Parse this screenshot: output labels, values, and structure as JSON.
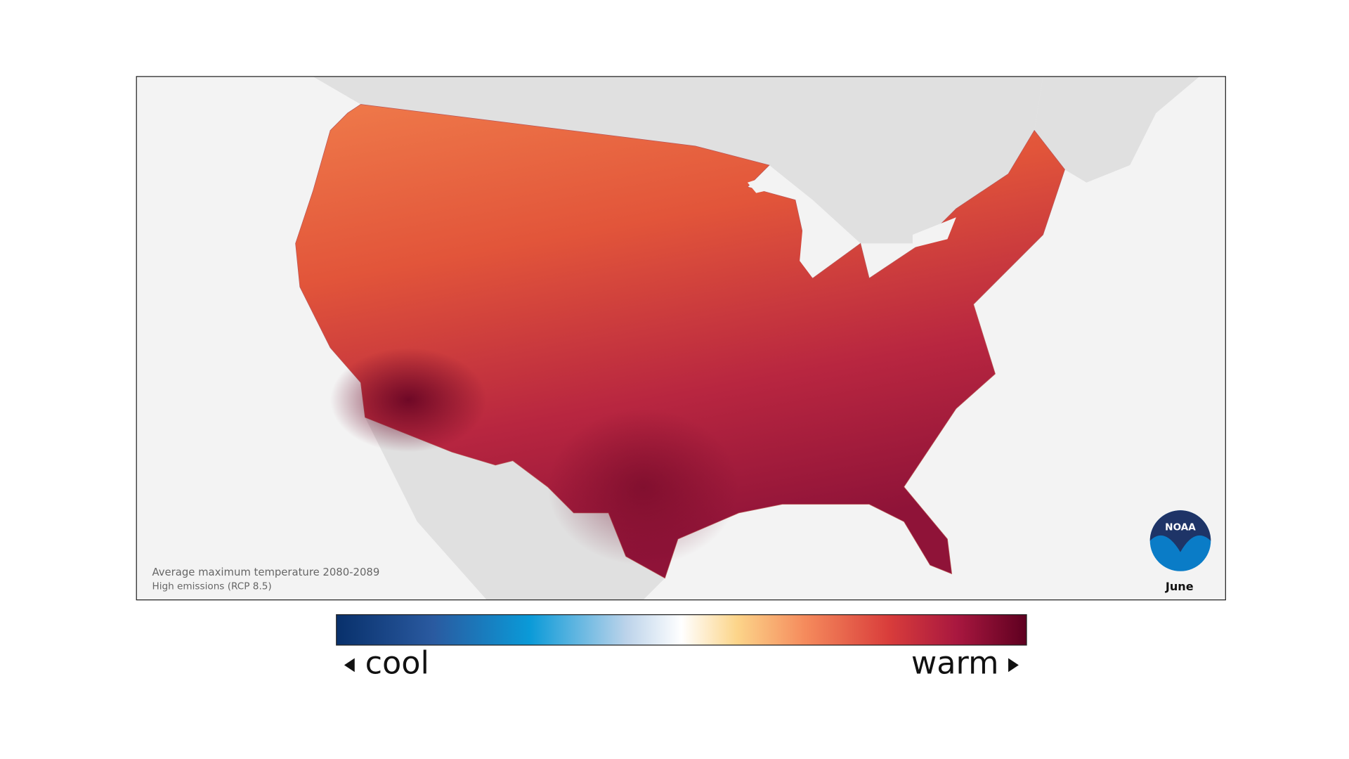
{
  "map": {
    "caption": {
      "title": "Average maximum temperature 2080-2089",
      "subtitle": "High emissions (RCP 8.5)"
    },
    "month": "June"
  },
  "logo": {
    "text": "NOAA"
  },
  "legend": {
    "low_label": "cool",
    "high_label": "warm"
  }
}
